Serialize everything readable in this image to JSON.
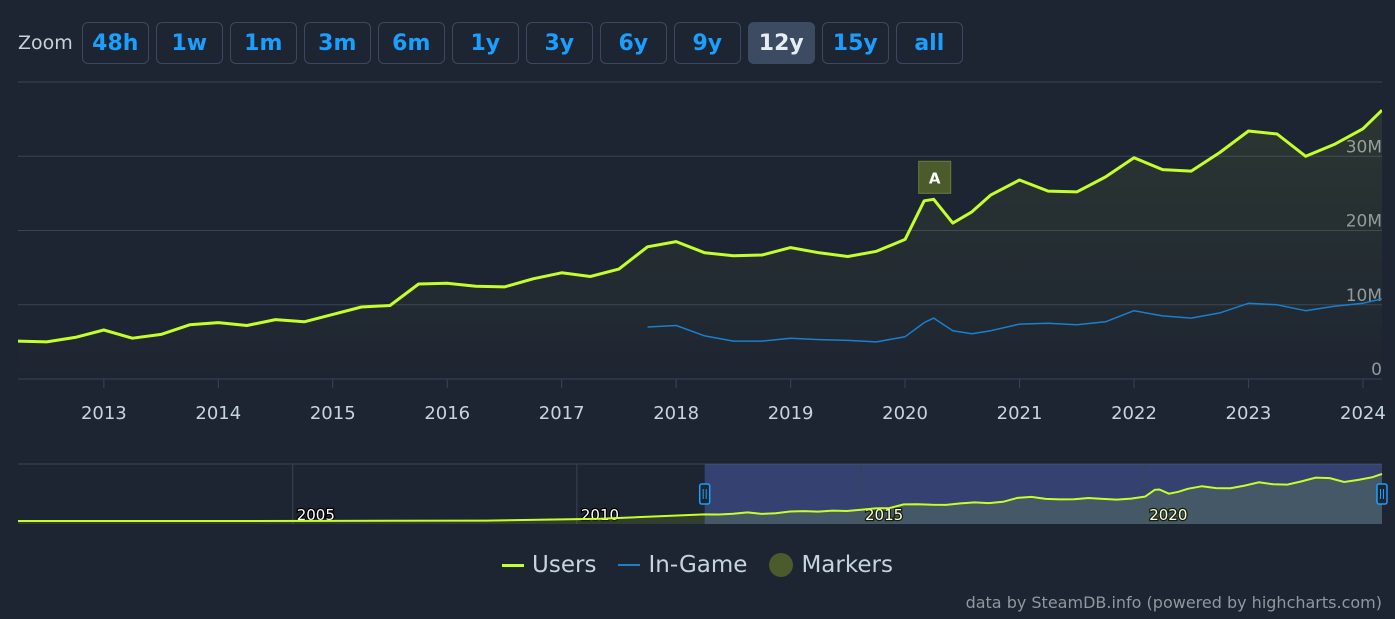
{
  "zoom": {
    "label": "Zoom",
    "buttons": [
      {
        "label": "48h",
        "active": false
      },
      {
        "label": "1w",
        "active": false
      },
      {
        "label": "1m",
        "active": false
      },
      {
        "label": "3m",
        "active": false
      },
      {
        "label": "6m",
        "active": false
      },
      {
        "label": "1y",
        "active": false
      },
      {
        "label": "3y",
        "active": false
      },
      {
        "label": "6y",
        "active": false
      },
      {
        "label": "9y",
        "active": false
      },
      {
        "label": "12y",
        "active": true
      },
      {
        "label": "15y",
        "active": false
      },
      {
        "label": "all",
        "active": false
      }
    ]
  },
  "legend": [
    {
      "label": "Users",
      "color": "#c5ff29",
      "kind": "line"
    },
    {
      "label": "In-Game",
      "color": "#1a7fcf",
      "kind": "line"
    },
    {
      "label": "Markers",
      "color": "#4b5b2c",
      "kind": "dot"
    }
  ],
  "credit": "data by SteamDB.info (powered by highcharts.com)",
  "chart_data": {
    "type": "line",
    "x_axis": {
      "type": "datetime",
      "range": [
        "2012-04",
        "2024-03"
      ],
      "ticks": [
        "2013",
        "2014",
        "2015",
        "2016",
        "2017",
        "2018",
        "2019",
        "2020",
        "2021",
        "2022",
        "2023",
        "2024"
      ]
    },
    "y_axis": {
      "min": 0,
      "max": 40000000,
      "ticks": [
        0,
        10000000,
        20000000,
        30000000
      ],
      "tick_labels": [
        "0",
        "10M",
        "20M",
        "30M"
      ],
      "position": "right"
    },
    "grid": true,
    "legend_position": "bottom-center",
    "series": [
      {
        "name": "Users",
        "color": "#c5ff29",
        "x": [
          "2012-04",
          "2012-07",
          "2012-10",
          "2013-01",
          "2013-04",
          "2013-07",
          "2013-10",
          "2014-01",
          "2014-04",
          "2014-07",
          "2014-10",
          "2015-01",
          "2015-04",
          "2015-07",
          "2015-10",
          "2016-01",
          "2016-04",
          "2016-07",
          "2016-10",
          "2017-01",
          "2017-04",
          "2017-07",
          "2017-10",
          "2018-01",
          "2018-04",
          "2018-07",
          "2018-10",
          "2019-01",
          "2019-04",
          "2019-07",
          "2019-10",
          "2020-01",
          "2020-03",
          "2020-04",
          "2020-06",
          "2020-08",
          "2020-10",
          "2021-01",
          "2021-04",
          "2021-07",
          "2021-10",
          "2022-01",
          "2022-04",
          "2022-07",
          "2022-10",
          "2023-01",
          "2023-04",
          "2023-07",
          "2023-10",
          "2024-01",
          "2024-03"
        ],
        "values": [
          5100000,
          5000000,
          5600000,
          6600000,
          5500000,
          6000000,
          7300000,
          7600000,
          7200000,
          8000000,
          7700000,
          8700000,
          9700000,
          9900000,
          12800000,
          12900000,
          12500000,
          12400000,
          13500000,
          14300000,
          13800000,
          14800000,
          17800000,
          18500000,
          17000000,
          16600000,
          16700000,
          17700000,
          17000000,
          16500000,
          17200000,
          18800000,
          24000000,
          24200000,
          21000000,
          22500000,
          24800000,
          26800000,
          25300000,
          25200000,
          27200000,
          29800000,
          28200000,
          28000000,
          30500000,
          33400000,
          33000000,
          30000000,
          31600000,
          33700000,
          36200000
        ]
      },
      {
        "name": "In-Game",
        "color": "#1a7fcf",
        "x": [
          "2017-10",
          "2018-01",
          "2018-04",
          "2018-07",
          "2018-10",
          "2019-01",
          "2019-04",
          "2019-07",
          "2019-10",
          "2020-01",
          "2020-03",
          "2020-04",
          "2020-06",
          "2020-08",
          "2020-10",
          "2021-01",
          "2021-04",
          "2021-07",
          "2021-10",
          "2022-01",
          "2022-04",
          "2022-07",
          "2022-10",
          "2023-01",
          "2023-04",
          "2023-07",
          "2023-10",
          "2024-01",
          "2024-03"
        ],
        "values": [
          7000000,
          7200000,
          5800000,
          5100000,
          5100000,
          5500000,
          5300000,
          5200000,
          5000000,
          5700000,
          7600000,
          8200000,
          6500000,
          6100000,
          6500000,
          7400000,
          7500000,
          7300000,
          7700000,
          9200000,
          8500000,
          8200000,
          8900000,
          10200000,
          10000000,
          9200000,
          9800000,
          10200000,
          10800000
        ]
      }
    ],
    "markers": [
      {
        "label": "A",
        "x": "2020-04"
      }
    ],
    "navigator": {
      "range": [
        "2000-03",
        "2024-03"
      ],
      "tick_labels": [
        "2005",
        "2010",
        "2015",
        "2020"
      ],
      "selected": [
        "2012-04",
        "2024-03"
      ]
    }
  }
}
